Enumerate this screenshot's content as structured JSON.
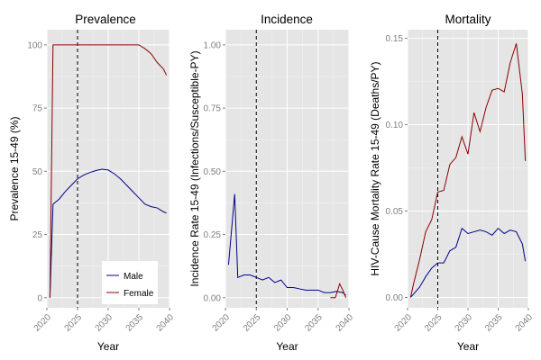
{
  "chart_data": [
    {
      "type": "line",
      "title": "Prevalence",
      "xlabel": "Year",
      "ylabel": "Prevalence 15-49 (%)",
      "xlim": [
        2020,
        2040
      ],
      "ylim": [
        -4,
        106
      ],
      "xticks": [
        2020,
        2025,
        2030,
        2035,
        2040
      ],
      "yticks": [
        0,
        25,
        50,
        75,
        100
      ],
      "ytick_labels": [
        "0",
        "25",
        "50",
        "75",
        "100"
      ],
      "vline": 2025,
      "series": [
        {
          "name": "Male",
          "color": "#00008B",
          "x": [
            2020.5,
            2021,
            2022,
            2023,
            2024,
            2025,
            2026,
            2027,
            2028,
            2029,
            2030,
            2031,
            2032,
            2033,
            2034,
            2035,
            2036,
            2037,
            2038,
            2039,
            2039.5
          ],
          "y": [
            0,
            37,
            39,
            42,
            44.5,
            47,
            48.5,
            49.5,
            50.3,
            50.8,
            50.5,
            49,
            47,
            44.5,
            42,
            39.5,
            37,
            36,
            35.5,
            34,
            33.5
          ]
        },
        {
          "name": "Female",
          "color": "#8B0000",
          "x": [
            2020.5,
            2020.8,
            2021,
            2022,
            2023,
            2024,
            2025,
            2026,
            2027,
            2028,
            2029,
            2030,
            2031,
            2032,
            2033,
            2034,
            2035,
            2036,
            2037,
            2038,
            2039,
            2039.5
          ],
          "y": [
            0,
            60,
            100,
            100,
            100,
            100,
            100,
            100,
            100,
            100,
            100,
            100,
            100,
            100,
            100,
            100,
            100,
            98.5,
            96.5,
            93,
            90.5,
            88
          ]
        }
      ],
      "legend": {
        "position": "bottom-right",
        "entries": [
          "Male",
          "Female"
        ]
      }
    },
    {
      "type": "line",
      "title": "Incidence",
      "xlabel": "Year",
      "ylabel": "Incidence Rate 15-49 (Infections/Susceptible-PY)",
      "xlim": [
        2020,
        2040
      ],
      "ylim": [
        -0.04,
        1.06
      ],
      "xticks": [
        2020,
        2025,
        2030,
        2035,
        2040
      ],
      "yticks": [
        0,
        0.25,
        0.5,
        0.75,
        1.0
      ],
      "ytick_labels": [
        "0.00",
        "0.25",
        "0.50",
        "0.75",
        "1.00"
      ],
      "vline": 2025,
      "series": [
        {
          "color": "#00008B",
          "x": [
            2020.5,
            2021,
            2021.5,
            2022,
            2023,
            2024,
            2025,
            2026,
            2027,
            2028,
            2029,
            2030,
            2031,
            2032,
            2033,
            2034,
            2035,
            2036,
            2037,
            2038,
            2039,
            2039.5
          ],
          "y": [
            0.13,
            0.27,
            0.41,
            0.08,
            0.09,
            0.09,
            0.08,
            0.07,
            0.08,
            0.06,
            0.07,
            0.04,
            0.04,
            0.035,
            0.03,
            0.03,
            0.03,
            0.02,
            0.02,
            0.025,
            0.02,
            0.01
          ]
        },
        {
          "color": "#8B0000",
          "x": [
            2037,
            2037.8,
            2038.5,
            2039,
            2039.5
          ],
          "y": [
            0.0,
            0.0,
            0.055,
            0.03,
            0.0
          ]
        }
      ]
    },
    {
      "type": "line",
      "title": "Mortality",
      "xlabel": "Year",
      "ylabel": "HIV-Cause Mortality Rate 15-49 (Deaths/PY)",
      "xlim": [
        2020,
        2040
      ],
      "ylim": [
        -0.006,
        0.155
      ],
      "xticks": [
        2020,
        2025,
        2030,
        2035,
        2040
      ],
      "yticks": [
        0,
        0.05,
        0.1,
        0.15
      ],
      "ytick_labels": [
        "0.00",
        "0.05",
        "0.10",
        "0.15"
      ],
      "vline": 2025,
      "series": [
        {
          "color": "#00008B",
          "x": [
            2020.5,
            2021,
            2022,
            2023,
            2024,
            2025,
            2026,
            2027,
            2028,
            2029,
            2030,
            2031,
            2032,
            2033,
            2034,
            2035,
            2036,
            2037,
            2038,
            2039,
            2039.5
          ],
          "y": [
            0,
            0.002,
            0.006,
            0.012,
            0.017,
            0.02,
            0.02,
            0.027,
            0.029,
            0.04,
            0.037,
            0.038,
            0.039,
            0.038,
            0.036,
            0.04,
            0.037,
            0.039,
            0.038,
            0.031,
            0.021
          ]
        },
        {
          "color": "#8B0000",
          "x": [
            2020.5,
            2021,
            2022,
            2023,
            2024,
            2025,
            2026,
            2027,
            2028,
            2029,
            2030,
            2031,
            2032,
            2033,
            2034,
            2035,
            2036,
            2037,
            2038,
            2039,
            2039.5
          ],
          "y": [
            0,
            0.008,
            0.022,
            0.038,
            0.045,
            0.061,
            0.062,
            0.077,
            0.081,
            0.093,
            0.083,
            0.107,
            0.096,
            0.11,
            0.12,
            0.121,
            0.119,
            0.136,
            0.147,
            0.118,
            0.079
          ]
        }
      ]
    }
  ]
}
